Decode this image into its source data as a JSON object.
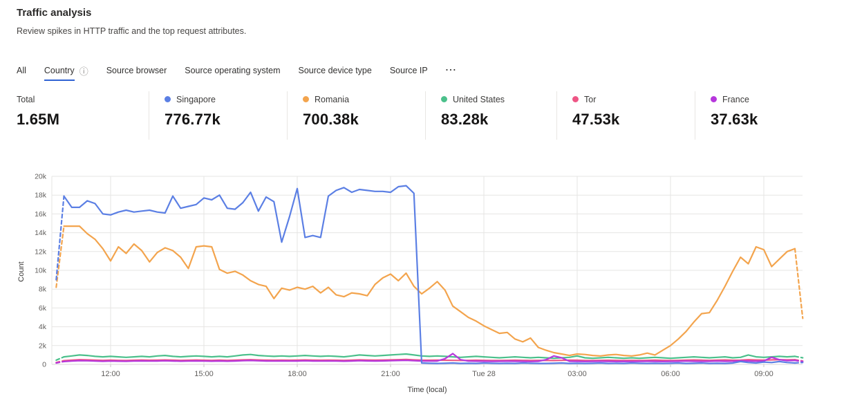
{
  "header": {
    "title": "Traffic analysis",
    "subtitle": "Review spikes in HTTP traffic and the top request attributes."
  },
  "tabs": {
    "items": [
      {
        "label": "All",
        "active": false,
        "info_icon": false
      },
      {
        "label": "Country",
        "active": true,
        "info_icon": true
      },
      {
        "label": "Source browser",
        "active": false,
        "info_icon": false
      },
      {
        "label": "Source operating system",
        "active": false,
        "info_icon": false
      },
      {
        "label": "Source device type",
        "active": false,
        "info_icon": false
      },
      {
        "label": "Source IP",
        "active": false,
        "info_icon": false
      }
    ],
    "overflow": "...",
    "info_icon_glyph": "ⓘ",
    "active_underline_color": "#2f62d3"
  },
  "stats": {
    "items": [
      {
        "label": "Total",
        "value": "1.65M",
        "color": null
      },
      {
        "label": "Singapore",
        "value": "776.77k",
        "color": "#5b7fe4"
      },
      {
        "label": "Romania",
        "value": "700.38k",
        "color": "#f3a44d"
      },
      {
        "label": "United States",
        "value": "83.28k",
        "color": "#4bc08b"
      },
      {
        "label": "Tor",
        "value": "47.53k",
        "color": "#ee5585"
      },
      {
        "label": "France",
        "value": "37.63k",
        "color": "#b637dc"
      }
    ]
  },
  "chart_data": {
    "type": "line",
    "title": "",
    "xlabel": "Time (local)",
    "ylabel": "Count",
    "ylim": [
      0,
      20000
    ],
    "grid": true,
    "legend_position": "top-stats-row",
    "start_time": "Mon 10:15",
    "interval_minutes": 15,
    "n_points": 97,
    "partial_bucket_dash": {
      "first_segment": true,
      "last_segment": true
    },
    "y_ticks": [
      {
        "value": 0,
        "label": "0"
      },
      {
        "value": 2000,
        "label": "2k"
      },
      {
        "value": 4000,
        "label": "4k"
      },
      {
        "value": 6000,
        "label": "6k"
      },
      {
        "value": 8000,
        "label": "8k"
      },
      {
        "value": 10000,
        "label": "10k"
      },
      {
        "value": 12000,
        "label": "12k"
      },
      {
        "value": 14000,
        "label": "14k"
      },
      {
        "value": 16000,
        "label": "16k"
      },
      {
        "value": 18000,
        "label": "18k"
      },
      {
        "value": 20000,
        "label": "20k"
      }
    ],
    "x_ticks": [
      {
        "index": 7,
        "label": "12:00"
      },
      {
        "index": 19,
        "label": "15:00"
      },
      {
        "index": 31,
        "label": "18:00"
      },
      {
        "index": 43,
        "label": "21:00"
      },
      {
        "index": 55,
        "label": "Tue 28"
      },
      {
        "index": 67,
        "label": "03:00"
      },
      {
        "index": 79,
        "label": "06:00"
      },
      {
        "index": 91,
        "label": "09:00"
      }
    ],
    "series": [
      {
        "name": "Singapore",
        "color": "#5b7fe4",
        "values": [
          9000,
          17900,
          16700,
          16700,
          17400,
          17100,
          16000,
          15900,
          16200,
          16400,
          16200,
          16300,
          16400,
          16200,
          16100,
          17900,
          16600,
          16800,
          17000,
          17700,
          17500,
          18000,
          16600,
          16500,
          17200,
          18300,
          16300,
          17800,
          17300,
          13000,
          15700,
          18700,
          13500,
          13700,
          13500,
          17900,
          18500,
          18800,
          18300,
          18600,
          18500,
          18400,
          18400,
          18300,
          18900,
          19000,
          18200,
          150,
          120,
          100,
          120,
          150,
          100,
          120,
          100,
          150,
          120,
          100,
          120,
          100,
          150,
          120,
          100,
          100,
          120,
          150,
          100,
          120,
          100,
          120,
          150,
          100,
          120,
          100,
          150,
          120,
          100,
          120,
          100,
          120,
          150,
          100,
          120,
          150,
          100,
          120,
          100,
          150,
          300,
          200,
          150,
          250,
          200,
          300,
          200,
          150,
          200
        ]
      },
      {
        "name": "Romania",
        "color": "#f3a44d",
        "values": [
          8200,
          14700,
          14700,
          14700,
          13900,
          13300,
          12300,
          11000,
          12500,
          11800,
          12800,
          12100,
          10900,
          11900,
          12400,
          12100,
          11400,
          10200,
          12500,
          12600,
          12500,
          10100,
          9700,
          9900,
          9500,
          8900,
          8500,
          8300,
          7000,
          8100,
          7900,
          8200,
          8000,
          8300,
          7600,
          8200,
          7400,
          7200,
          7600,
          7500,
          7300,
          8500,
          9200,
          9600,
          8900,
          9700,
          8300,
          7500,
          8100,
          8800,
          7900,
          6200,
          5600,
          5000,
          4600,
          4100,
          3700,
          3300,
          3400,
          2700,
          2400,
          2800,
          1800,
          1500,
          1250,
          1100,
          950,
          1100,
          1050,
          950,
          900,
          1000,
          1050,
          950,
          900,
          1000,
          1200,
          1000,
          1500,
          2000,
          2700,
          3500,
          4500,
          5400,
          5500,
          6800,
          8300,
          9900,
          11400,
          10700,
          12500,
          12200,
          10400,
          11200,
          12000,
          12300,
          4900
        ]
      },
      {
        "name": "United States",
        "color": "#4bc08b",
        "values": [
          450,
          800,
          900,
          1000,
          950,
          850,
          800,
          850,
          800,
          750,
          800,
          850,
          800,
          900,
          950,
          850,
          800,
          850,
          900,
          850,
          800,
          850,
          800,
          900,
          1000,
          1050,
          950,
          900,
          850,
          900,
          850,
          900,
          950,
          900,
          850,
          900,
          850,
          800,
          900,
          1000,
          950,
          900,
          950,
          1000,
          1050,
          1100,
          1000,
          900,
          850,
          900,
          850,
          800,
          750,
          800,
          850,
          800,
          750,
          700,
          750,
          800,
          750,
          700,
          750,
          700,
          650,
          700,
          750,
          900,
          700,
          650,
          700,
          750,
          700,
          650,
          700,
          650,
          700,
          750,
          700,
          650,
          700,
          750,
          800,
          750,
          700,
          750,
          800,
          700,
          750,
          1000,
          800,
          750,
          800,
          850,
          800,
          850,
          700
        ]
      },
      {
        "name": "Tor",
        "color": "#ee5585",
        "values": [
          200,
          400,
          450,
          500,
          480,
          450,
          430,
          450,
          430,
          420,
          440,
          460,
          440,
          450,
          470,
          450,
          430,
          440,
          460,
          440,
          430,
          450,
          430,
          450,
          480,
          500,
          470,
          450,
          440,
          450,
          440,
          450,
          470,
          450,
          440,
          450,
          440,
          430,
          450,
          480,
          460,
          450,
          460,
          480,
          500,
          520,
          480,
          450,
          440,
          450,
          440,
          430,
          420,
          430,
          440,
          430,
          420,
          410,
          430,
          440,
          430,
          420,
          430,
          420,
          410,
          430,
          450,
          440,
          420,
          410,
          430,
          440,
          430,
          420,
          430,
          420,
          430,
          450,
          430,
          420,
          430,
          450,
          470,
          450,
          430,
          450,
          470,
          440,
          450,
          500,
          470,
          450,
          480,
          500,
          480,
          500,
          350
        ]
      },
      {
        "name": "France",
        "color": "#b637dc",
        "values": [
          150,
          300,
          350,
          400,
          380,
          350,
          330,
          350,
          340,
          330,
          350,
          370,
          350,
          360,
          380,
          360,
          340,
          350,
          370,
          350,
          340,
          360,
          340,
          360,
          390,
          410,
          380,
          360,
          350,
          360,
          350,
          360,
          380,
          360,
          350,
          360,
          350,
          340,
          360,
          390,
          370,
          360,
          370,
          390,
          410,
          430,
          390,
          360,
          350,
          360,
          600,
          1150,
          500,
          350,
          340,
          330,
          320,
          330,
          340,
          330,
          320,
          310,
          330,
          500,
          900,
          700,
          330,
          320,
          310,
          320,
          330,
          320,
          310,
          320,
          310,
          320,
          330,
          320,
          310,
          320,
          330,
          350,
          330,
          320,
          330,
          350,
          330,
          340,
          380,
          360,
          340,
          360,
          750,
          500,
          400,
          420,
          300
        ]
      }
    ]
  }
}
